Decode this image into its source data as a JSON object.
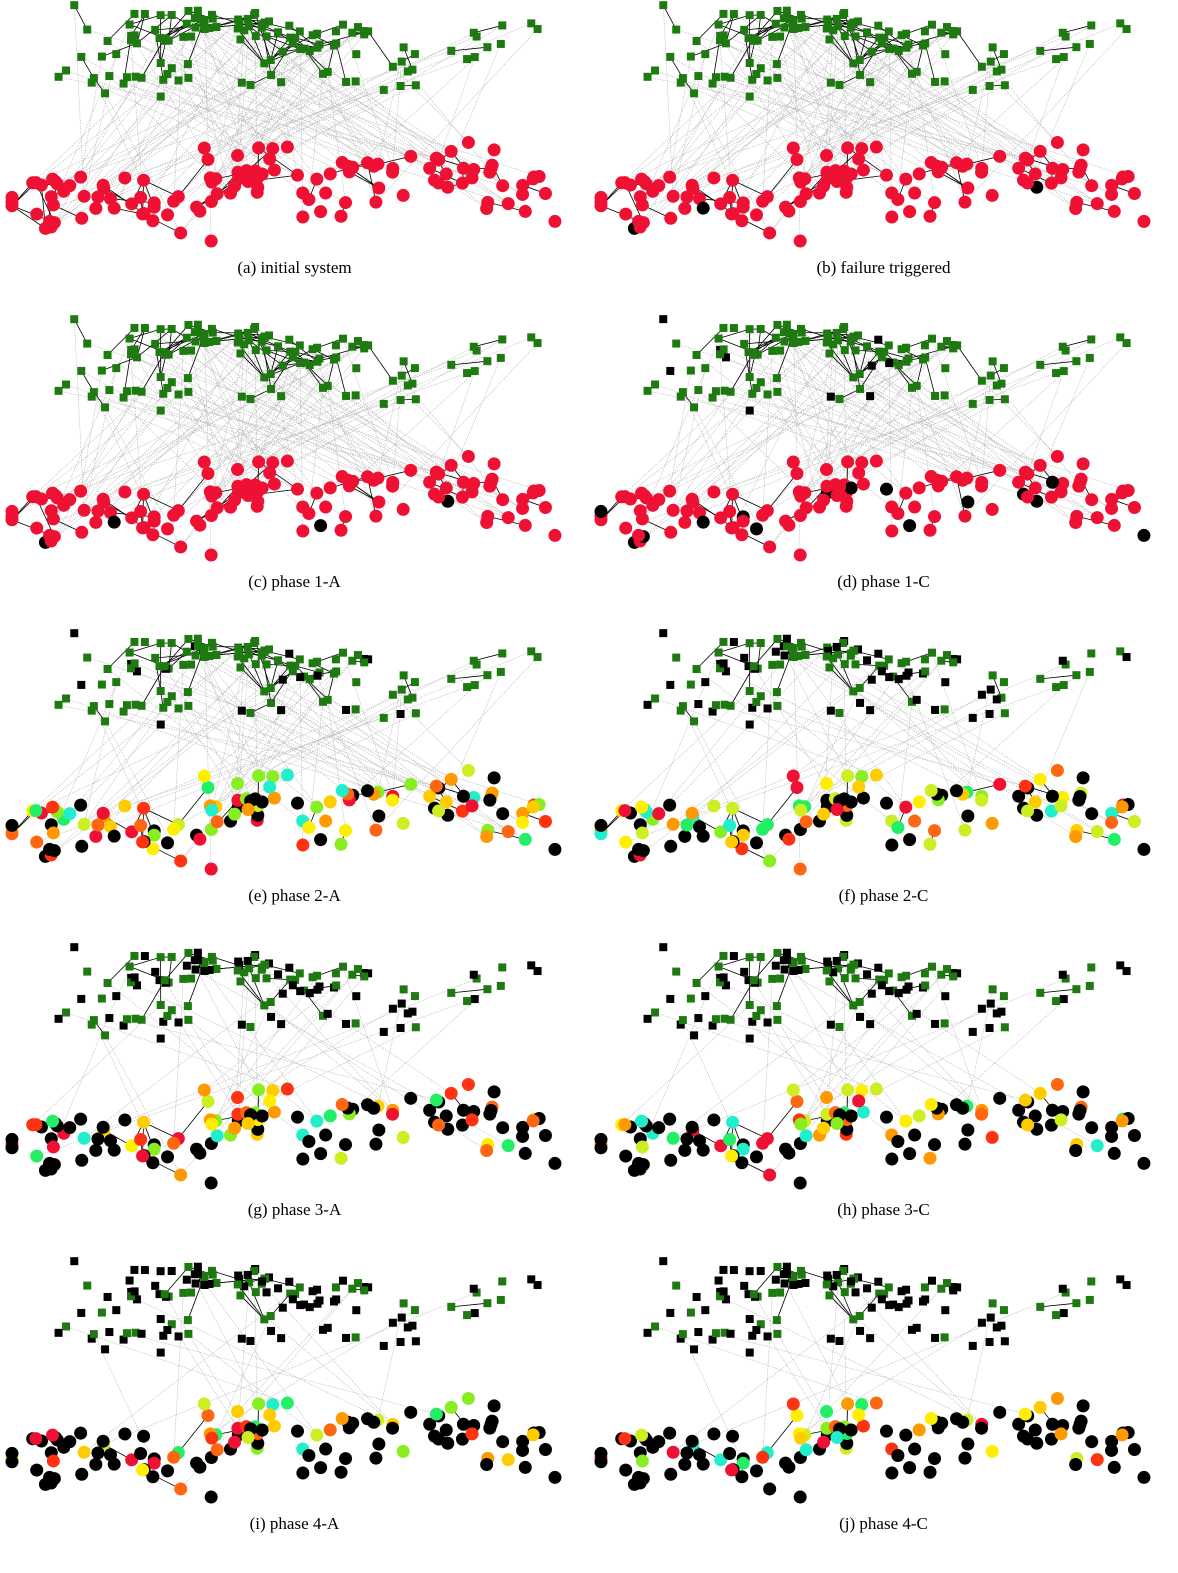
{
  "figure": {
    "panels": [
      {
        "caption": "(a) initial system",
        "phase": 0
      },
      {
        "caption": "(b) failure triggered",
        "phase": 1
      },
      {
        "caption": "(c) phase 1-A",
        "phase": 2
      },
      {
        "caption": "(d) phase 1-C",
        "phase": 3
      },
      {
        "caption": "(e) phase 2-A",
        "phase": 4
      },
      {
        "caption": "(f) phase 2-C",
        "phase": 5
      },
      {
        "caption": "(g) phase 3-A",
        "phase": 6
      },
      {
        "caption": "(h) phase 3-C",
        "phase": 7
      },
      {
        "caption": "(i) phase 4-A",
        "phase": 8
      },
      {
        "caption": "(j) phase 4-C",
        "phase": 9
      }
    ],
    "colors": {
      "communication_node": "#1e7a10",
      "power_node": "#ee1133",
      "failed_node": "#000000",
      "interlink": "#b8b8b8",
      "intralink": "#000000",
      "overload_scale": [
        "#ee1133",
        "#ff3311",
        "#ff6611",
        "#ff9900",
        "#ffcc00",
        "#ffee00",
        "#ccee22",
        "#88ee22",
        "#22ee66",
        "#22eecc"
      ]
    },
    "legend_shapes": {
      "communication_node": "square",
      "power_node": "circle"
    }
  }
}
